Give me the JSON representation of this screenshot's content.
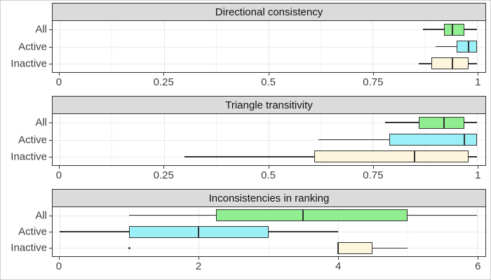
{
  "figure": {
    "background": "#FFFFFF",
    "outer_border": "#CFCFCF",
    "strip_background": "#DBDBDB",
    "panel_border": "#333333",
    "grid_major_color": "#E6E6E6",
    "grid_minor_color": "#F2F2F2",
    "box_outline_color": "#333333",
    "text_color": "#3d3d3d"
  },
  "chart_data": [
    {
      "type": "boxplot",
      "orientation": "horizontal",
      "title": "Directional consistency",
      "xlim": [
        0,
        1
      ],
      "xticks": [
        0,
        0.25,
        0.5,
        0.75,
        1
      ],
      "xtick_labels": [
        "0",
        "0.25",
        "0.5",
        "0.75",
        "1"
      ],
      "xminor": [
        0.125,
        0.375,
        0.625,
        0.875
      ],
      "grid": "on",
      "legend": "none",
      "categories": [
        "All",
        "Active",
        "Inactive"
      ],
      "series": [
        {
          "category": "All",
          "color": "#90EE90",
          "whisker_min": 0.87,
          "q1": 0.92,
          "median": 0.94,
          "q3": 0.97,
          "whisker_max": 1.0,
          "outliers": []
        },
        {
          "category": "Active",
          "color": "#9BF0F8",
          "whisker_min": 0.9,
          "q1": 0.95,
          "median": 0.98,
          "q3": 1.0,
          "whisker_max": 1.0,
          "outliers": []
        },
        {
          "category": "Inactive",
          "color": "#FDF5DC",
          "whisker_min": 0.86,
          "q1": 0.89,
          "median": 0.94,
          "q3": 0.98,
          "whisker_max": 1.0,
          "outliers": []
        }
      ]
    },
    {
      "type": "boxplot",
      "orientation": "horizontal",
      "title": "Triangle transitivity",
      "xlim": [
        0,
        1
      ],
      "xticks": [
        0,
        0.25,
        0.5,
        0.75,
        1
      ],
      "xtick_labels": [
        "0",
        "0.25",
        "0.5",
        "0.75",
        "1"
      ],
      "xminor": [
        0.125,
        0.375,
        0.625,
        0.875
      ],
      "grid": "on",
      "legend": "none",
      "categories": [
        "All",
        "Active",
        "Inactive"
      ],
      "series": [
        {
          "category": "All",
          "color": "#90EE90",
          "whisker_min": 0.78,
          "q1": 0.86,
          "median": 0.92,
          "q3": 0.97,
          "whisker_max": 1.0,
          "outliers": []
        },
        {
          "category": "Active",
          "color": "#9BF0F8",
          "whisker_min": 0.62,
          "q1": 0.79,
          "median": 0.97,
          "q3": 1.0,
          "whisker_max": 1.0,
          "outliers": []
        },
        {
          "category": "Inactive",
          "color": "#FDF5DC",
          "whisker_min": 0.3,
          "q1": 0.61,
          "median": 0.85,
          "q3": 0.98,
          "whisker_max": 1.0,
          "outliers": []
        }
      ]
    },
    {
      "type": "boxplot",
      "orientation": "horizontal",
      "title": "Inconsistencies in ranking",
      "xlim": [
        0,
        6
      ],
      "xticks": [
        0,
        2,
        4,
        6
      ],
      "xtick_labels": [
        "0",
        "2",
        "4",
        "6"
      ],
      "xminor": [
        1,
        3,
        5
      ],
      "grid": "on",
      "legend": "none",
      "categories": [
        "All",
        "Active",
        "Inactive"
      ],
      "series": [
        {
          "category": "All",
          "color": "#90EE90",
          "whisker_min": 1.0,
          "q1": 2.25,
          "median": 3.5,
          "q3": 5.0,
          "whisker_max": 6.0,
          "outliers": []
        },
        {
          "category": "Active",
          "color": "#9BF0F8",
          "whisker_min": 0.0,
          "q1": 1.0,
          "median": 2.0,
          "q3": 3.0,
          "whisker_max": 4.0,
          "outliers": []
        },
        {
          "category": "Inactive",
          "color": "#FDF5DC",
          "whisker_min": 4.0,
          "q1": 4.0,
          "median": 4.0,
          "q3": 4.5,
          "whisker_max": 5.0,
          "outliers": [
            1.0
          ]
        }
      ]
    }
  ]
}
